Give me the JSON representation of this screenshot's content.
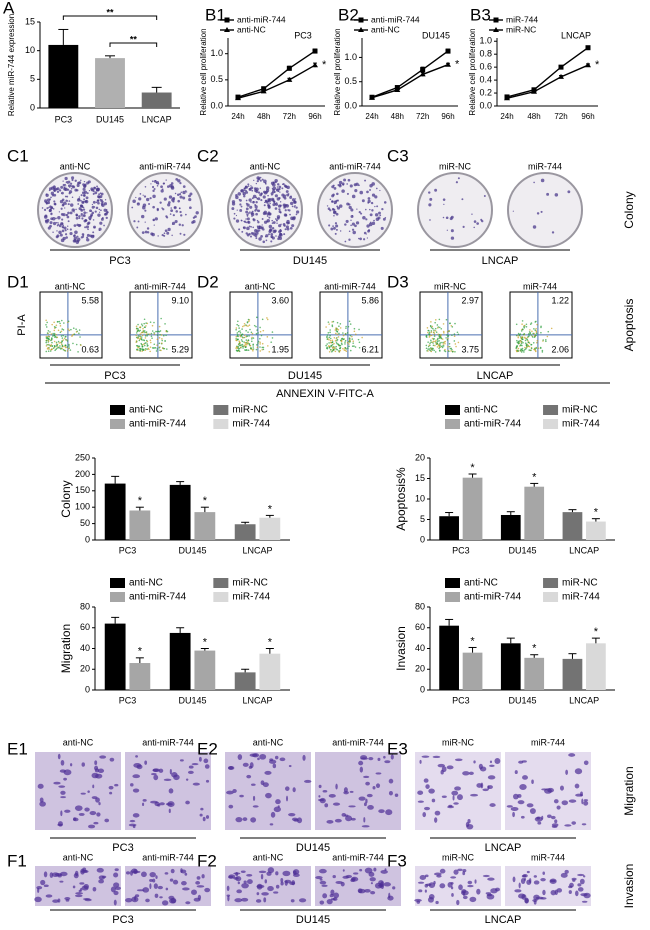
{
  "chart_data": [
    {
      "type": "bar",
      "label": "A",
      "categories": [
        "PC3",
        "DU145",
        "LNCAP"
      ],
      "values": [
        11,
        8.7,
        2.7
      ],
      "errors": [
        2.7,
        0.4,
        0.9
      ],
      "colors": [
        "#000000",
        "#b0b0b0",
        "#6e6e6e"
      ],
      "ylabel": "Relative miR-744 expression",
      "ylim": [
        0,
        15
      ],
      "yticks": [
        0,
        5,
        10,
        15
      ],
      "annotations": [
        "**",
        "**"
      ]
    },
    {
      "type": "line",
      "label": "B1",
      "title": "PC3",
      "categories": [
        "24h",
        "48h",
        "72h",
        "96h"
      ],
      "series": [
        {
          "name": "anti-miR-744",
          "color": "#000000",
          "values": [
            0.17,
            0.33,
            0.72,
            1.05
          ],
          "errors": [
            0.02,
            0.03,
            0.04,
            0.04
          ]
        },
        {
          "name": "anti-NC",
          "color": "#000000",
          "values": [
            0.15,
            0.28,
            0.5,
            0.78
          ],
          "errors": [
            0.02,
            0.02,
            0.03,
            0.04
          ]
        }
      ],
      "ylabel": "Relative cell proliferation",
      "ylim": [
        0,
        1.3
      ],
      "yticks": [
        {
          "value": 0,
          "label": "0.0"
        },
        0.5,
        {
          "value": 1,
          "label": "1.0"
        }
      ],
      "annotation": "*"
    },
    {
      "type": "line",
      "label": "B2",
      "title": "DU145",
      "categories": [
        "24h",
        "48h",
        "72h",
        "96h"
      ],
      "series": [
        {
          "name": "anti-miR-744",
          "color": "#000000",
          "values": [
            0.18,
            0.38,
            0.75,
            1.13
          ],
          "errors": [
            0.02,
            0.03,
            0.05,
            0.04
          ]
        },
        {
          "name": "anti-NC",
          "color": "#000000",
          "values": [
            0.17,
            0.33,
            0.65,
            0.85
          ],
          "errors": [
            0.02,
            0.03,
            0.04,
            0.03
          ]
        }
      ],
      "ylabel": "Relative cell proliferation",
      "ylim": [
        0,
        1.4
      ],
      "yticks": [
        {
          "value": 0,
          "label": "0.0"
        },
        0.5,
        {
          "value": 1,
          "label": "1.0"
        }
      ],
      "annotation": "*"
    },
    {
      "type": "line",
      "label": "B3",
      "title": "LNCAP",
      "categories": [
        "24h",
        "48h",
        "72h",
        "96h"
      ],
      "series": [
        {
          "name": "miR-744",
          "color": "#000000",
          "values": [
            0.14,
            0.25,
            0.6,
            0.9
          ],
          "errors": [
            0.01,
            0.02,
            0.02,
            0.02
          ]
        },
        {
          "name": "miR-NC",
          "color": "#000000",
          "values": [
            0.12,
            0.22,
            0.45,
            0.63
          ],
          "errors": [
            0.01,
            0.02,
            0.02,
            0.02
          ]
        }
      ],
      "ylabel": "Relative cell proliferation",
      "ylim": [
        0,
        1.05
      ],
      "yticks": [
        {
          "value": 0,
          "label": "0.0"
        },
        0.2,
        0.4,
        0.6,
        0.8,
        {
          "value": 1,
          "label": "1.0"
        }
      ],
      "annotation": "*"
    },
    {
      "type": "grouped-bar",
      "categories": [
        "PC3",
        "DU145",
        "LNCAP"
      ],
      "series": [
        {
          "name": "anti-NC",
          "color": "#000000",
          "values": [
            172,
            168,
            null
          ],
          "errors": [
            22,
            10,
            null
          ],
          "annotations": [
            null,
            null,
            null
          ]
        },
        {
          "name": "anti-miR-744",
          "color": "#a6a6a6",
          "values": [
            90,
            85,
            null
          ],
          "errors": [
            10,
            15,
            null
          ],
          "annotations": [
            "*",
            "*",
            null
          ]
        },
        {
          "name": "miR-NC",
          "color": "#737373",
          "values": [
            null,
            null,
            48
          ],
          "errors": [
            null,
            null,
            6
          ],
          "annotations": [
            null,
            null,
            null
          ]
        },
        {
          "name": "miR-744",
          "color": "#d9d9d9",
          "values": [
            null,
            null,
            68
          ],
          "errors": [
            null,
            null,
            7
          ],
          "annotations": [
            null,
            null,
            "*"
          ]
        }
      ],
      "ylabel": "Colony",
      "ylim": [
        0,
        250
      ],
      "yticks": [
        0,
        50,
        100,
        150,
        200,
        250
      ]
    },
    {
      "type": "grouped-bar",
      "categories": [
        "PC3",
        "DU145",
        "LNCAP"
      ],
      "series": [
        {
          "name": "anti-NC",
          "color": "#000000",
          "values": [
            5.8,
            6.1,
            null
          ],
          "errors": [
            0.9,
            0.8,
            null
          ],
          "annotations": [
            null,
            null,
            null
          ]
        },
        {
          "name": "anti-miR-744",
          "color": "#a6a6a6",
          "values": [
            15.2,
            13,
            null
          ],
          "errors": [
            0.9,
            0.8,
            null
          ],
          "annotations": [
            "*",
            "*",
            null
          ]
        },
        {
          "name": "miR-NC",
          "color": "#737373",
          "values": [
            null,
            null,
            6.8
          ],
          "errors": [
            null,
            null,
            0.6
          ],
          "annotations": [
            null,
            null,
            null
          ]
        },
        {
          "name": "miR-744",
          "color": "#d9d9d9",
          "values": [
            null,
            null,
            4.5
          ],
          "errors": [
            null,
            null,
            0.7
          ],
          "annotations": [
            null,
            null,
            "*"
          ]
        }
      ],
      "ylabel": "Apoptosis%",
      "ylim": [
        0,
        20
      ],
      "yticks": [
        0,
        5,
        10,
        15,
        20
      ]
    },
    {
      "type": "grouped-bar",
      "categories": [
        "PC3",
        "DU145",
        "LNCAP"
      ],
      "series": [
        {
          "name": "anti-NC",
          "color": "#000000",
          "values": [
            64,
            55,
            null
          ],
          "errors": [
            6,
            5,
            null
          ],
          "annotations": [
            null,
            null,
            null
          ]
        },
        {
          "name": "anti-miR-744",
          "color": "#a6a6a6",
          "values": [
            26,
            38,
            null
          ],
          "errors": [
            5,
            2,
            null
          ],
          "annotations": [
            "*",
            "*",
            null
          ]
        },
        {
          "name": "miR-NC",
          "color": "#737373",
          "values": [
            null,
            null,
            17
          ],
          "errors": [
            null,
            null,
            3
          ],
          "annotations": [
            null,
            null,
            null
          ]
        },
        {
          "name": "miR-744",
          "color": "#d9d9d9",
          "values": [
            null,
            null,
            35
          ],
          "errors": [
            null,
            null,
            5
          ],
          "annotations": [
            null,
            null,
            "*"
          ]
        }
      ],
      "ylabel": "Migration",
      "ylim": [
        0,
        80
      ],
      "yticks": [
        0,
        20,
        40,
        60,
        80
      ]
    },
    {
      "type": "grouped-bar",
      "categories": [
        "PC3",
        "DU145",
        "LNCAP"
      ],
      "series": [
        {
          "name": "anti-NC",
          "color": "#000000",
          "values": [
            62,
            45,
            null
          ],
          "errors": [
            6,
            5,
            null
          ],
          "annotations": [
            null,
            null,
            null
          ]
        },
        {
          "name": "anti-miR-744",
          "color": "#a6a6a6",
          "values": [
            36,
            31,
            null
          ],
          "errors": [
            5,
            3,
            null
          ],
          "annotations": [
            "*",
            "*",
            null
          ]
        },
        {
          "name": "miR-NC",
          "color": "#737373",
          "values": [
            null,
            null,
            30
          ],
          "errors": [
            null,
            null,
            5
          ],
          "annotations": [
            null,
            null,
            null
          ]
        },
        {
          "name": "miR-744",
          "color": "#d9d9d9",
          "values": [
            null,
            null,
            45
          ],
          "errors": [
            null,
            null,
            5
          ],
          "annotations": [
            null,
            null,
            "*"
          ]
        }
      ],
      "ylabel": "Invasion",
      "ylim": [
        0,
        80
      ],
      "yticks": [
        0,
        20,
        40,
        60,
        80
      ]
    }
  ],
  "panels": {
    "C": {
      "side_label": "Colony",
      "groups": [
        {
          "label": "C1",
          "left": "anti-NC",
          "right": "anti-miR-744",
          "cell": "PC3"
        },
        {
          "label": "C2",
          "left": "anti-NC",
          "right": "anti-miR-744",
          "cell": "DU145"
        },
        {
          "label": "C3",
          "left": "miR-NC",
          "right": "miR-744",
          "cell": "LNCAP"
        }
      ]
    },
    "D": {
      "side_label": "Apoptosis",
      "ylabel": "PI-A",
      "xlabel": "ANNEXIN V-FITC-A",
      "groups": [
        {
          "label": "D1",
          "left": "anti-NC",
          "right": "anti-miR-744",
          "cell": "PC3",
          "left_quadrants": [
            "5.58",
            "0.63"
          ],
          "right_quadrants": [
            "9.10",
            "5.29"
          ]
        },
        {
          "label": "D2",
          "left": "anti-NC",
          "right": "anti-miR-744",
          "cell": "DU145",
          "left_quadrants": [
            "3.60",
            "1.95"
          ],
          "right_quadrants": [
            "5.86",
            "6.21"
          ]
        },
        {
          "label": "D3",
          "left": "miR-NC",
          "right": "miR-744",
          "cell": "LNCAP",
          "left_quadrants": [
            "2.97",
            "3.75"
          ],
          "right_quadrants": [
            "1.22",
            "2.06"
          ]
        }
      ]
    },
    "E": {
      "side_label": "Migration",
      "groups": [
        {
          "label": "E1",
          "left": "anti-NC",
          "right": "anti-miR-744",
          "cell": "PC3"
        },
        {
          "label": "E2",
          "left": "anti-NC",
          "right": "anti-miR-744",
          "cell": "DU145"
        },
        {
          "label": "E3",
          "left": "miR-NC",
          "right": "miR-744",
          "cell": "LNCAP"
        }
      ]
    },
    "F": {
      "side_label": "Invasion",
      "groups": [
        {
          "label": "F1",
          "left": "anti-NC",
          "right": "anti-miR-744",
          "cell": "PC3"
        },
        {
          "label": "F2",
          "left": "anti-NC",
          "right": "anti-miR-744",
          "cell": "DU145"
        },
        {
          "label": "F3",
          "left": "miR-NC",
          "right": "miR-744",
          "cell": "LNCAP"
        }
      ]
    }
  }
}
